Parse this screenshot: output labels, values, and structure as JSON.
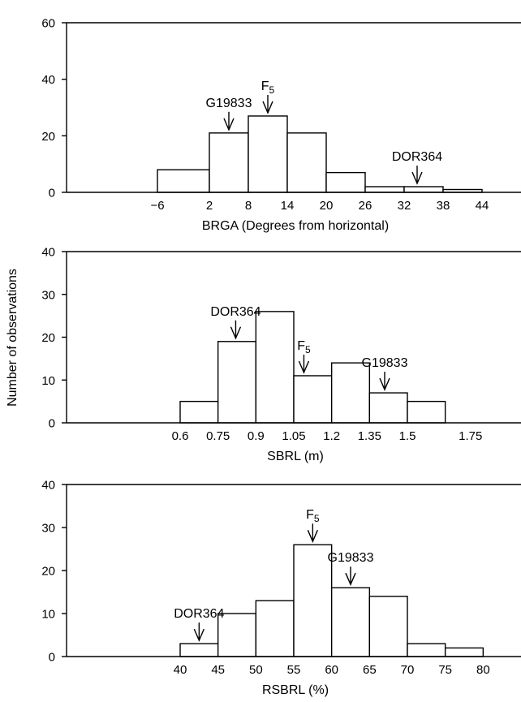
{
  "figure": {
    "shared_ylabel": "Number of observations"
  },
  "chart_data": [
    {
      "type": "bar",
      "title": "",
      "xlabel": "BRGA (Degrees from horizontal)",
      "ylabel": "Number of observations",
      "xlim": [
        -20,
        50
      ],
      "ylim": [
        0,
        60
      ],
      "yticks": [
        0,
        20,
        40,
        60
      ],
      "xticks": [
        -6,
        2,
        8,
        14,
        20,
        26,
        32,
        38,
        44
      ],
      "xtick_labels": [
        "−6",
        "2",
        "8",
        "14",
        "20",
        "26",
        "32",
        "38",
        "44"
      ],
      "bins": [
        {
          "x0": -6,
          "x1": 2,
          "value": 8
        },
        {
          "x0": 2,
          "x1": 8,
          "value": 21
        },
        {
          "x0": 8,
          "x1": 14,
          "value": 27
        },
        {
          "x0": 14,
          "x1": 20,
          "value": 21
        },
        {
          "x0": 20,
          "x1": 26,
          "value": 7
        },
        {
          "x0": 26,
          "x1": 32,
          "value": 2
        },
        {
          "x0": 32,
          "x1": 38,
          "value": 2
        },
        {
          "x0": 38,
          "x1": 44,
          "value": 1
        }
      ],
      "annotations": [
        {
          "label": "G19833",
          "sub": "",
          "x": 5
        },
        {
          "label": "F",
          "sub": "5",
          "x": 11
        },
        {
          "label": "DOR364",
          "sub": "",
          "x": 34
        }
      ]
    },
    {
      "type": "bar",
      "title": "",
      "xlabel": "SBRL (m)",
      "ylabel": "Number of observations",
      "xlim": [
        0.15,
        1.95
      ],
      "ylim": [
        0,
        40
      ],
      "yticks": [
        0,
        10,
        20,
        30,
        40
      ],
      "xticks": [
        0.6,
        0.75,
        0.9,
        1.05,
        1.2,
        1.35,
        1.5,
        1.75
      ],
      "xtick_labels": [
        "0.6",
        "0.75",
        "0.9",
        "1.05",
        "1.2",
        "1.35",
        "1.5",
        "1.75"
      ],
      "bins": [
        {
          "x0": 0.6,
          "x1": 0.75,
          "value": 5
        },
        {
          "x0": 0.75,
          "x1": 0.9,
          "value": 19
        },
        {
          "x0": 0.9,
          "x1": 1.05,
          "value": 26
        },
        {
          "x0": 1.05,
          "x1": 1.2,
          "value": 11
        },
        {
          "x0": 1.2,
          "x1": 1.35,
          "value": 14
        },
        {
          "x0": 1.35,
          "x1": 1.5,
          "value": 7
        },
        {
          "x0": 1.5,
          "x1": 1.65,
          "value": 5
        }
      ],
      "annotations": [
        {
          "label": "DOR364",
          "sub": "",
          "x": 0.82
        },
        {
          "label": "F",
          "sub": "5",
          "x": 1.09
        },
        {
          "label": "G19833",
          "sub": "",
          "x": 1.41
        }
      ]
    },
    {
      "type": "bar",
      "title": "",
      "xlabel": "RSBRL (%)",
      "ylabel": "Number of observations",
      "xlim": [
        25,
        85
      ],
      "ylim": [
        0,
        40
      ],
      "yticks": [
        0,
        10,
        20,
        30,
        40
      ],
      "xticks": [
        40,
        45,
        50,
        55,
        60,
        65,
        70,
        75,
        80
      ],
      "xtick_labels": [
        "40",
        "45",
        "50",
        "55",
        "60",
        "65",
        "70",
        "75",
        "80"
      ],
      "bins": [
        {
          "x0": 40,
          "x1": 45,
          "value": 3
        },
        {
          "x0": 45,
          "x1": 50,
          "value": 10
        },
        {
          "x0": 50,
          "x1": 55,
          "value": 13
        },
        {
          "x0": 55,
          "x1": 60,
          "value": 26
        },
        {
          "x0": 60,
          "x1": 65,
          "value": 16
        },
        {
          "x0": 65,
          "x1": 70,
          "value": 14
        },
        {
          "x0": 70,
          "x1": 75,
          "value": 3
        },
        {
          "x0": 75,
          "x1": 80,
          "value": 2
        }
      ],
      "annotations": [
        {
          "label": "DOR364",
          "sub": "",
          "x": 42.5
        },
        {
          "label": "F",
          "sub": "5",
          "x": 57.5
        },
        {
          "label": "G19833",
          "sub": "",
          "x": 62.5
        }
      ]
    }
  ]
}
